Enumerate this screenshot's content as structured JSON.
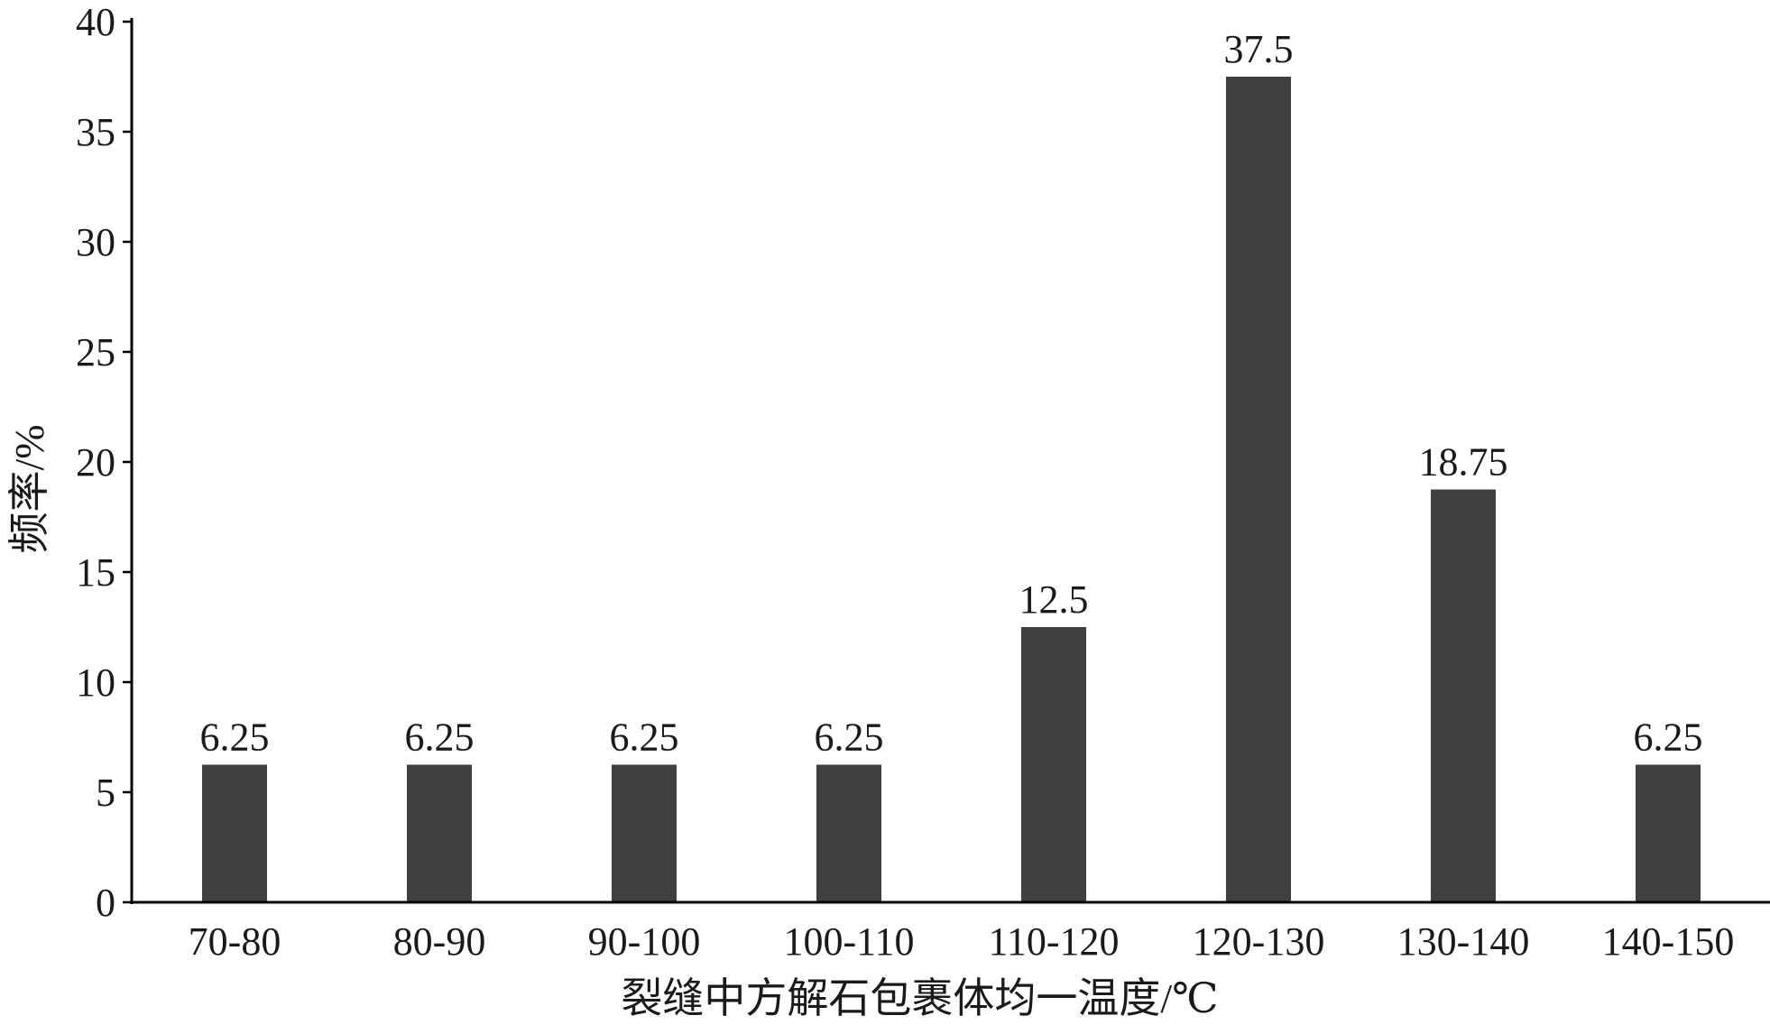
{
  "chart_data": {
    "type": "bar",
    "title": "",
    "xlabel": "裂缝中方解石包裹体均一温度/℃",
    "ylabel": "频率/%",
    "categories": [
      "70-80",
      "80-90",
      "90-100",
      "100-110",
      "110-120",
      "120-130",
      "130-140",
      "140-150"
    ],
    "values": [
      6.25,
      6.25,
      6.25,
      6.25,
      12.5,
      37.5,
      18.75,
      6.25
    ],
    "data_labels": [
      "6.25",
      "6.25",
      "6.25",
      "6.25",
      "12.5",
      "37.5",
      "18.75",
      "6.25"
    ],
    "ylim": [
      0,
      40
    ],
    "yticks": [
      0,
      5,
      10,
      15,
      20,
      25,
      30,
      35,
      40
    ],
    "grid": false,
    "legend": "none",
    "bar_color": "#404040",
    "axis_color": "#000000"
  }
}
